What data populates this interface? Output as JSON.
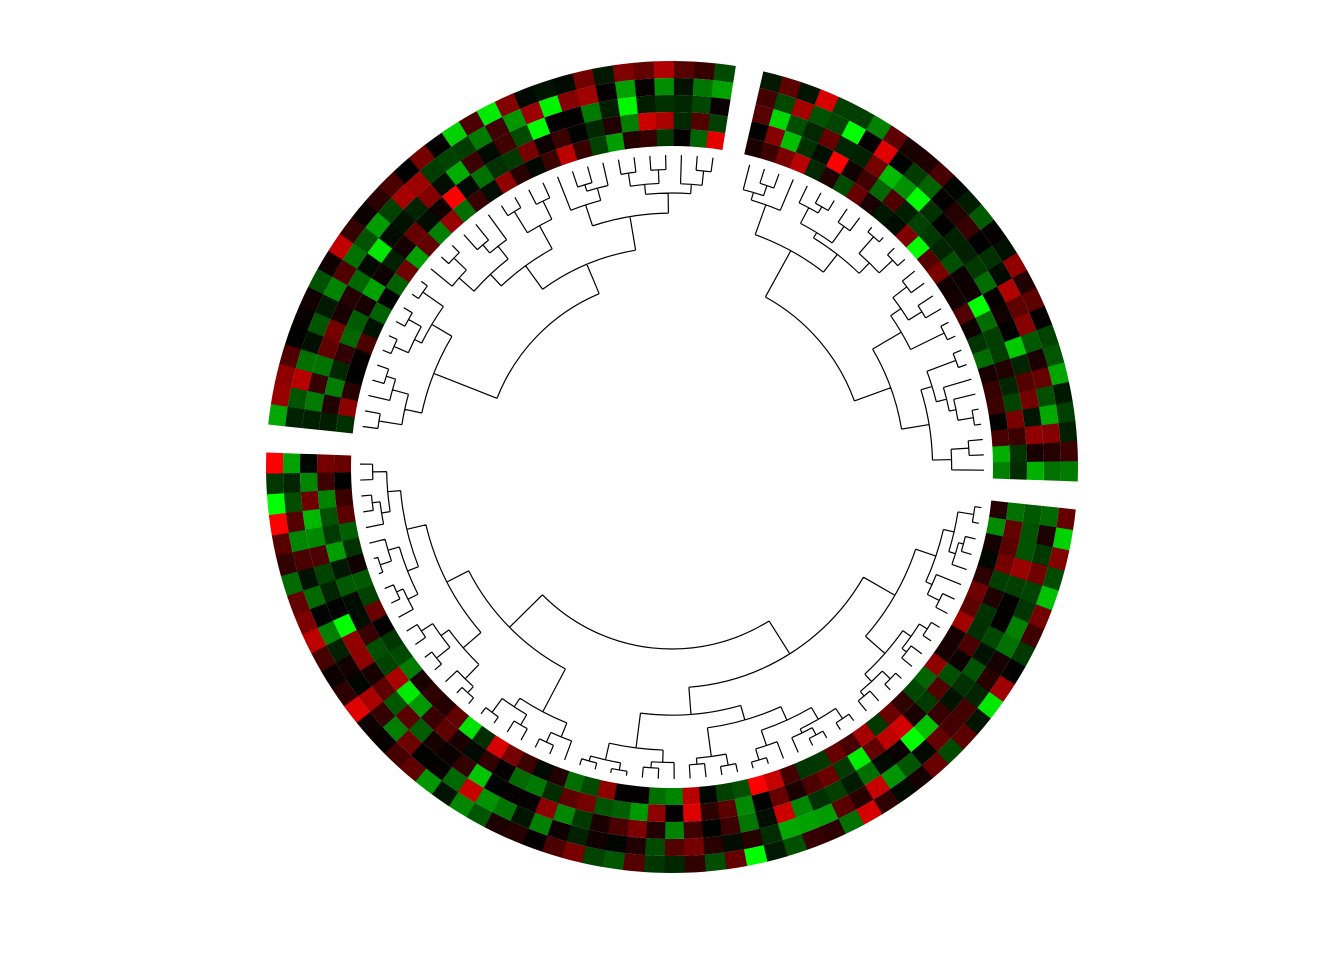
{
  "chart_data": {
    "type": "heatmap",
    "layout": "circular",
    "title": "",
    "legend": "none",
    "grid": false,
    "colors": {
      "low": "#00ff00",
      "mid": "#000000",
      "high": "#ff0000"
    },
    "value_range": [
      -2,
      2
    ],
    "tracks_per_sector": 5,
    "sectors": [
      {
        "name": "",
        "n_rows": 60,
        "span_deg": 176,
        "dendrogram": true
      },
      {
        "name": "",
        "n_rows": 32,
        "span_deg": 93,
        "dendrogram": true
      },
      {
        "name": "",
        "n_rows": 28,
        "span_deg": 79,
        "dendrogram": true
      }
    ]
  }
}
